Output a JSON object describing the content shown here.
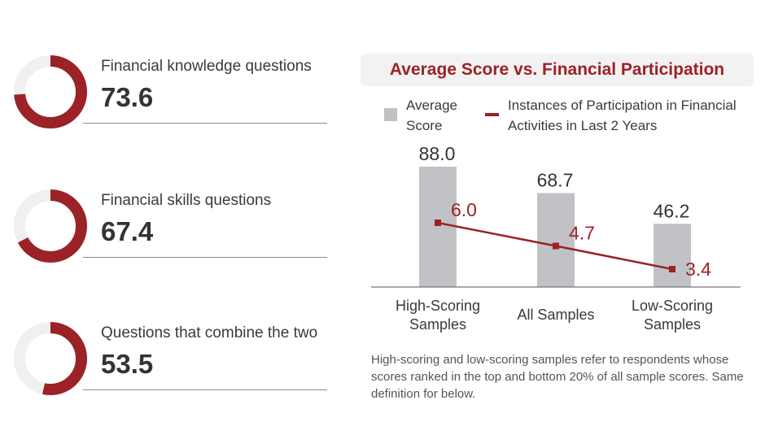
{
  "stats": [
    {
      "label": "Financial knowledge questions",
      "value": "73.6",
      "fraction": 0.736
    },
    {
      "label": "Financial skills questions",
      "value": "67.4",
      "fraction": 0.674
    },
    {
      "label": "Questions that combine the two",
      "value": "53.5",
      "fraction": 0.535
    }
  ],
  "colors": {
    "accent": "#9b2226",
    "bar": "#c1c2c6",
    "track": "#f0f0f0",
    "text": "#333333"
  },
  "legend": {
    "bar": "Average Score",
    "line": "Instances of Participation in Financial Activities in Last 2 Years"
  },
  "note": "High-scoring and low-scoring samples refer to respondents whose scores ranked in the top and bottom 20% of all sample scores. Same definition for below.",
  "chart_data": {
    "type": "bar",
    "title": "Average Score vs. Financial Participation",
    "categories": [
      "High-Scoring Samples",
      "All Samples",
      "Low-Scoring Samples"
    ],
    "category_lines": [
      [
        "High-Scoring",
        "Samples"
      ],
      [
        "All Samples"
      ],
      [
        "Low-Scoring",
        "Samples"
      ]
    ],
    "series": [
      {
        "name": "Average Score",
        "type": "bar",
        "values": [
          88.0,
          68.7,
          46.2
        ],
        "labels": [
          "88.0",
          "68.7",
          "46.2"
        ]
      },
      {
        "name": "Instances of Participation in Financial Activities in Last 2 Years",
        "type": "line",
        "values": [
          6.0,
          4.7,
          3.4
        ],
        "labels": [
          "6.0",
          "4.7",
          "3.4"
        ]
      }
    ],
    "ylim_bar": [
      0,
      100
    ],
    "ylim_line": [
      0,
      7
    ],
    "grid": false,
    "legend": "top"
  }
}
